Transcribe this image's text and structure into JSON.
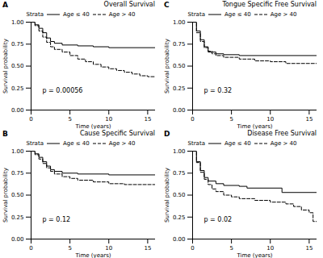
{
  "chart_data": [
    {
      "type": "line",
      "panel": "A",
      "title": "Overall Survival",
      "x_label": "Time (years)",
      "y_label": "Survival probability",
      "xlim": [
        0,
        16
      ],
      "xticks": [
        0,
        5,
        10,
        15
      ],
      "ylim": [
        0,
        1
      ],
      "yticks": [
        {
          "value": 0,
          "label": "0.00"
        },
        {
          "value": 0.25,
          "label": "0.25"
        },
        {
          "value": 0.5,
          "label": "0.50"
        },
        {
          "value": 0.75,
          "label": "0.75"
        },
        {
          "value": 1,
          "label": "1.00"
        }
      ],
      "grid": false,
      "legend": "top",
      "legend_title": "Strata",
      "annotation": "p = 0.00056",
      "series": [
        {
          "name": "Age ≤ 40",
          "color": "#000000",
          "line_style": "solid",
          "x": [
            0,
            0.5,
            1,
            1.5,
            2,
            2.5,
            3,
            4,
            6,
            8,
            10,
            16
          ],
          "values": [
            1,
            0.97,
            0.93,
            0.88,
            0.82,
            0.78,
            0.76,
            0.74,
            0.73,
            0.72,
            0.71,
            0.71
          ]
        },
        {
          "name": "Age > 40",
          "color": "#000000",
          "line_style": "dashed",
          "x": [
            0,
            0.5,
            1,
            1.5,
            2,
            2.5,
            3,
            4,
            5,
            6,
            7,
            8,
            9,
            10,
            11,
            12,
            13,
            14,
            15,
            16
          ],
          "values": [
            1,
            0.96,
            0.9,
            0.83,
            0.77,
            0.72,
            0.69,
            0.66,
            0.62,
            0.58,
            0.55,
            0.52,
            0.49,
            0.47,
            0.45,
            0.43,
            0.41,
            0.39,
            0.38,
            0.37
          ]
        }
      ]
    },
    {
      "type": "line",
      "panel": "B",
      "title": "Cause Specific Survival",
      "x_label": "Time (years)",
      "y_label": "Survival probability",
      "xlim": [
        0,
        16
      ],
      "xticks": [
        0,
        5,
        10,
        15
      ],
      "ylim": [
        0,
        1
      ],
      "yticks": [
        {
          "value": 0,
          "label": "0.00"
        },
        {
          "value": 0.25,
          "label": "0.25"
        },
        {
          "value": 0.5,
          "label": "0.50"
        },
        {
          "value": 0.75,
          "label": "0.75"
        },
        {
          "value": 1,
          "label": "1.00"
        }
      ],
      "grid": false,
      "legend": "top",
      "legend_title": "Strata",
      "annotation": "p = 0.12",
      "series": [
        {
          "name": "Age ≤ 40",
          "color": "#000000",
          "line_style": "solid",
          "x": [
            0,
            0.5,
            1,
            1.5,
            2,
            2.5,
            3,
            4,
            6,
            10,
            16
          ],
          "values": [
            1,
            0.97,
            0.93,
            0.88,
            0.83,
            0.79,
            0.77,
            0.75,
            0.74,
            0.73,
            0.73
          ]
        },
        {
          "name": "Age > 40",
          "color": "#000000",
          "line_style": "dashed",
          "x": [
            0,
            0.5,
            1,
            1.5,
            2,
            2.5,
            3,
            4,
            5,
            6,
            8,
            10,
            12,
            16
          ],
          "values": [
            1,
            0.96,
            0.91,
            0.86,
            0.81,
            0.77,
            0.74,
            0.71,
            0.69,
            0.67,
            0.65,
            0.63,
            0.62,
            0.62
          ]
        }
      ]
    },
    {
      "type": "line",
      "panel": "C",
      "title": "Tongue Specific Free Survival",
      "x_label": "Time (years)",
      "y_label": "Survival probability",
      "xlim": [
        0,
        16
      ],
      "xticks": [
        0,
        5,
        10,
        15
      ],
      "ylim": [
        0,
        1
      ],
      "yticks": [
        {
          "value": 0,
          "label": "0.00"
        },
        {
          "value": 0.25,
          "label": "0.25"
        },
        {
          "value": 0.5,
          "label": "0.50"
        },
        {
          "value": 0.75,
          "label": "0.75"
        },
        {
          "value": 1,
          "label": "1.00"
        }
      ],
      "grid": false,
      "legend": "top",
      "legend_title": "Strata",
      "annotation": "p = 0.32",
      "series": [
        {
          "name": "Age ≤ 40",
          "color": "#000000",
          "line_style": "solid",
          "x": [
            0,
            0.5,
            1,
            1.5,
            2,
            3,
            4,
            6,
            16
          ],
          "values": [
            1,
            0.9,
            0.8,
            0.72,
            0.66,
            0.64,
            0.63,
            0.62,
            0.62
          ]
        },
        {
          "name": "Age > 40",
          "color": "#000000",
          "line_style": "dashed",
          "x": [
            0,
            0.5,
            1,
            1.5,
            2,
            2.5,
            3,
            4,
            6,
            8,
            10,
            12,
            16
          ],
          "values": [
            1,
            0.88,
            0.78,
            0.71,
            0.67,
            0.64,
            0.62,
            0.6,
            0.58,
            0.56,
            0.55,
            0.53,
            0.53
          ]
        }
      ]
    },
    {
      "type": "line",
      "panel": "D",
      "title": "Disease Free Survival",
      "x_label": "Time (years)",
      "y_label": "Survival probability",
      "xlim": [
        0,
        16
      ],
      "xticks": [
        0,
        5,
        10,
        15
      ],
      "ylim": [
        0,
        1
      ],
      "yticks": [
        {
          "value": 0,
          "label": "0.00"
        },
        {
          "value": 0.25,
          "label": "0.25"
        },
        {
          "value": 0.5,
          "label": "0.50"
        },
        {
          "value": 0.75,
          "label": "0.75"
        },
        {
          "value": 1,
          "label": "1.00"
        }
      ],
      "grid": false,
      "legend": "top",
      "legend_title": "Strata",
      "annotation": "p = 0.02",
      "series": [
        {
          "name": "Age ≤ 40",
          "color": "#000000",
          "line_style": "solid",
          "x": [
            0,
            0.5,
            1,
            1.5,
            2,
            3,
            4,
            6,
            7,
            11.5,
            16
          ],
          "values": [
            1,
            0.88,
            0.78,
            0.7,
            0.66,
            0.63,
            0.61,
            0.6,
            0.58,
            0.53,
            0.53
          ]
        },
        {
          "name": "Age > 40",
          "color": "#000000",
          "line_style": "dashed",
          "x": [
            0,
            0.5,
            1,
            1.5,
            2,
            2.5,
            3,
            4,
            5,
            6,
            8,
            10,
            12,
            13,
            14,
            15,
            15.5,
            16
          ],
          "values": [
            1,
            0.87,
            0.76,
            0.68,
            0.62,
            0.57,
            0.54,
            0.5,
            0.48,
            0.46,
            0.44,
            0.42,
            0.4,
            0.37,
            0.33,
            0.3,
            0.2,
            0.2
          ]
        }
      ]
    }
  ]
}
